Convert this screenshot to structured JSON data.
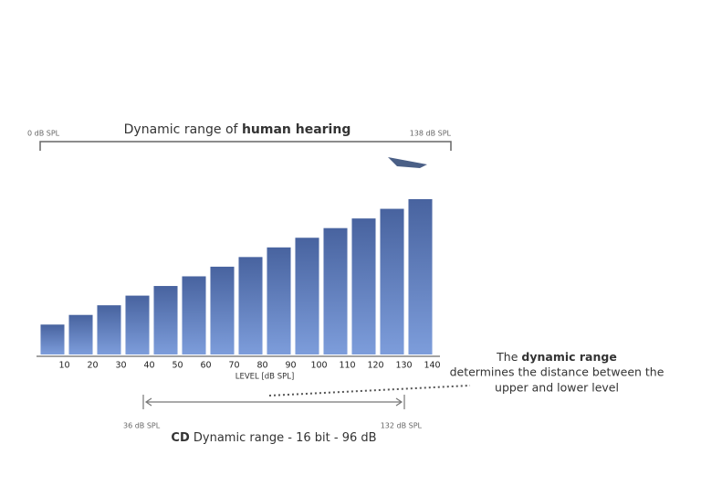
{
  "chart_data": {
    "type": "bar",
    "title": {
      "regular": "Dynamic range of ",
      "bold": "human hearing"
    },
    "range_left_label": "0 dB SPL",
    "range_right_label": "138 dB SPL",
    "x_label": "LEVEL [dB SPL]",
    "categories": [
      "10",
      "20",
      "30",
      "40",
      "50",
      "60",
      "70",
      "80",
      "90",
      "100",
      "110",
      "120",
      "130",
      "140"
    ],
    "values": [
      10,
      20,
      30,
      40,
      50,
      60,
      70,
      80,
      90,
      100,
      110,
      120,
      130,
      140
    ],
    "color": "#4f6fb0",
    "ylim": [
      -21,
      140
    ],
    "annotation": {
      "line1_regular": "The ",
      "line1_bold": "dynamic range",
      "line2": "determines the distance between the",
      "line3": "upper and lower level"
    },
    "cd_left_label": "36 dB SPL",
    "cd_right_label": "132 dB SPL",
    "cd_title": {
      "bold": "CD",
      "regular": " Dynamic range - 16 bit - 96 dB"
    }
  }
}
